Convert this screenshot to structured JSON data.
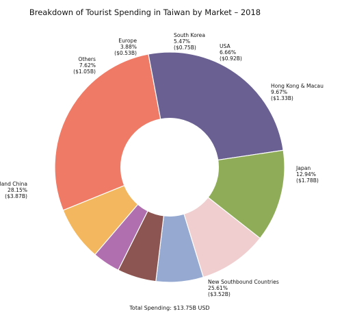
{
  "chart_data": {
    "type": "pie",
    "variant": "donut",
    "title": "Breakdown of Tourist Spending in Taiwan by Market – 2018",
    "footer": "Total Spending: $13.75B USD",
    "slices": [
      {
        "name": "Mainland China",
        "percent": 28.15,
        "percent_label": "28.15%",
        "amount_label": "($3.87B)",
        "color": "#ef7b67"
      },
      {
        "name": "New Southbound Countries",
        "percent": 25.61,
        "percent_label": "25.61%",
        "amount_label": "($3.52B)",
        "color": "#6a6192"
      },
      {
        "name": "Japan",
        "percent": 12.94,
        "percent_label": "12.94%",
        "amount_label": "($1.78B)",
        "color": "#8fad58"
      },
      {
        "name": "Hong Kong & Macau",
        "percent": 9.67,
        "percent_label": "9.67%",
        "amount_label": "($1.33B)",
        "color": "#f0cecf"
      },
      {
        "name": "USA",
        "percent": 6.66,
        "percent_label": "6.66%",
        "amount_label": "($0.92B)",
        "color": "#95a9d1"
      },
      {
        "name": "South Korea",
        "percent": 5.47,
        "percent_label": "5.47%",
        "amount_label": "($0.75B)",
        "color": "#8d5552"
      },
      {
        "name": "Europe",
        "percent": 3.88,
        "percent_label": "3.88%",
        "amount_label": "($0.53B)",
        "color": "#b06fae"
      },
      {
        "name": "Others",
        "percent": 7.62,
        "percent_label": "7.62%",
        "amount_label": "($1.05B)",
        "color": "#f3b85f"
      }
    ]
  }
}
